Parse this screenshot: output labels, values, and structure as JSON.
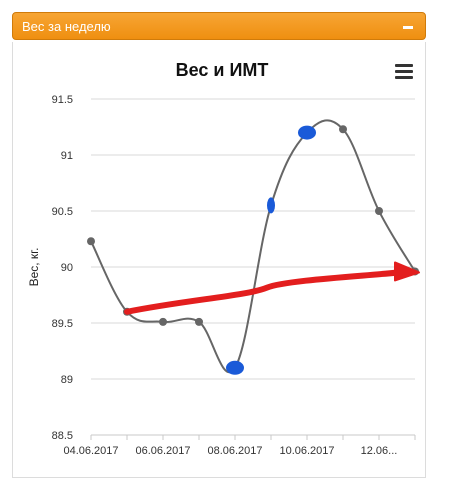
{
  "panel": {
    "title": "Вес за неделю"
  },
  "chart_data": {
    "type": "line",
    "title": "Вес и ИМТ",
    "ylabel": "Вес, кг.",
    "xlabel": "",
    "ylim": [
      88.5,
      91.5
    ],
    "y_ticks": [
      "88.5",
      "89",
      "89.5",
      "90",
      "90.5",
      "91",
      "91.5"
    ],
    "x_tick_labels": [
      "04.06.2017",
      "06.06.2017",
      "08.06.2017",
      "10.06.2017",
      "12.06..."
    ],
    "x_tick_indices": [
      0,
      2,
      4,
      6,
      8
    ],
    "grid": true,
    "series": [
      {
        "values": [
          90.23,
          89.6,
          89.51,
          89.51,
          89.1,
          90.55,
          91.2,
          91.23,
          90.5,
          89.96
        ],
        "color": "#666666",
        "highlighted_indices": [
          4,
          5,
          6
        ]
      }
    ],
    "annotation": {
      "type": "trend-arrow",
      "color": "#e31e1e"
    },
    "highlight_color": "#1a5ad8"
  }
}
